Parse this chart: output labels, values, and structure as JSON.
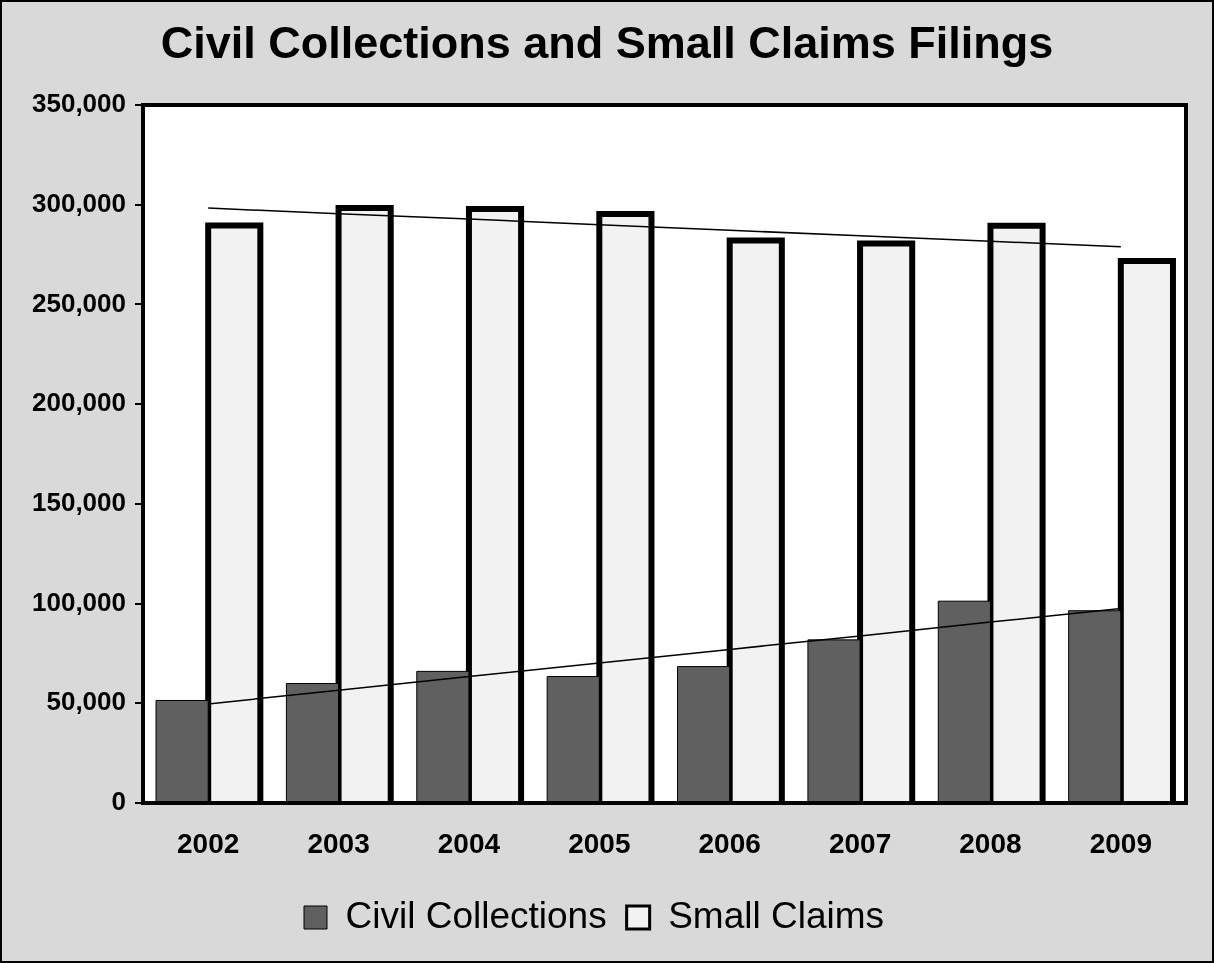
{
  "chart_data": {
    "type": "bar",
    "title": "Civil Collections and Small Claims Filings",
    "categories": [
      "2002",
      "2003",
      "2004",
      "2005",
      "2006",
      "2007",
      "2008",
      "2009"
    ],
    "series": [
      {
        "name": "Civil Collections",
        "color": "#606060",
        "values": [
          51400,
          59900,
          66000,
          63400,
          68400,
          81800,
          101200,
          96400
        ]
      },
      {
        "name": "Small Claims",
        "color": "#f2f2f2",
        "values": [
          289600,
          298400,
          297800,
          295400,
          282000,
          280500,
          289400,
          271800
        ]
      },
      {
        "type": "line",
        "color": "#000000",
        "values": [
          49700,
          56500,
          63400,
          70200,
          77000,
          83800,
          90700,
          97500
        ]
      },
      {
        "type": "line",
        "color": "#000000",
        "values": [
          298300,
          295500,
          292800,
          290000,
          287200,
          284400,
          281700,
          278900
        ]
      }
    ],
    "ylim": [
      0,
      350000
    ],
    "yticks": [
      {
        "value": 0,
        "label": "0"
      },
      {
        "value": 50000,
        "label": "50,000"
      },
      {
        "value": 100000,
        "label": "100,000"
      },
      {
        "value": 150000,
        "label": "150,000"
      },
      {
        "value": 200000,
        "label": "200,000"
      },
      {
        "value": 250000,
        "label": "250,000"
      },
      {
        "value": 300000,
        "label": "300,000"
      },
      {
        "value": 350000,
        "label": "350,000"
      }
    ],
    "grid": false,
    "legend": "bottom",
    "marker": "none"
  }
}
